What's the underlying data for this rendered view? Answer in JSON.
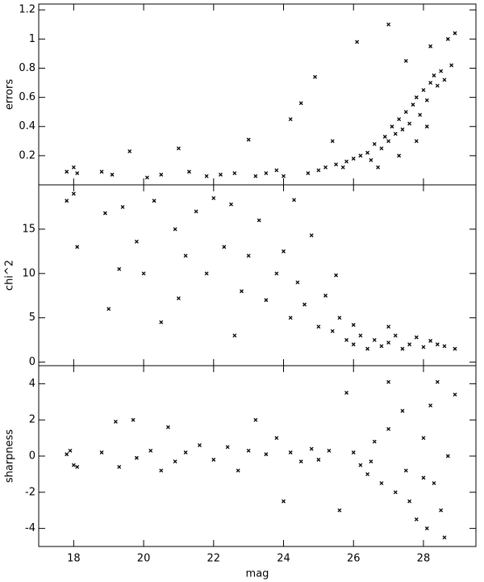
{
  "chart_data": [
    {
      "type": "scatter",
      "y_label": "errors",
      "color": "#000000",
      "xlim": [
        17,
        29.5
      ],
      "ylim": [
        0,
        1.24
      ],
      "yticks": [
        0.2,
        0.4,
        0.6,
        0.8,
        1.0,
        1.2
      ],
      "x": [
        17.8,
        18.0,
        18.1,
        18.8,
        19.1,
        19.6,
        20.1,
        20.5,
        21.0,
        21.3,
        21.8,
        22.2,
        22.6,
        23.0,
        23.2,
        23.5,
        23.8,
        24.0,
        24.2,
        24.5,
        24.7,
        24.9,
        25.0,
        25.2,
        25.4,
        25.5,
        25.7,
        25.8,
        26.0,
        26.1,
        26.2,
        26.4,
        26.5,
        26.6,
        26.8,
        26.9,
        27.0,
        27.0,
        27.1,
        27.2,
        27.3,
        27.4,
        27.5,
        27.6,
        27.7,
        27.8,
        27.9,
        28.0,
        28.1,
        28.2,
        28.3,
        28.4,
        28.5,
        28.6,
        28.2,
        28.7,
        28.9,
        28.8,
        27.5,
        27.8,
        28.1,
        26.7,
        27.3
      ],
      "values": [
        0.09,
        0.12,
        0.08,
        0.09,
        0.07,
        0.23,
        0.05,
        0.07,
        0.25,
        0.09,
        0.06,
        0.07,
        0.08,
        0.31,
        0.06,
        0.08,
        0.1,
        0.06,
        0.45,
        0.56,
        0.08,
        0.74,
        0.1,
        0.12,
        0.3,
        0.14,
        0.12,
        0.16,
        0.18,
        0.98,
        0.2,
        0.22,
        0.17,
        0.28,
        0.25,
        0.33,
        1.1,
        0.3,
        0.4,
        0.35,
        0.45,
        0.38,
        0.5,
        0.42,
        0.55,
        0.6,
        0.48,
        0.65,
        0.58,
        0.7,
        0.75,
        0.68,
        0.78,
        0.72,
        0.95,
        1.0,
        1.04,
        0.82,
        0.85,
        0.3,
        0.4,
        0.12,
        0.2
      ]
    },
    {
      "type": "scatter",
      "y_label": "chi^2",
      "color": "#000000",
      "xlim": [
        17,
        29.5
      ],
      "ylim": [
        -0.4,
        20
      ],
      "yticks": [
        0,
        5,
        10,
        15
      ],
      "x": [
        17.8,
        18.0,
        18.1,
        18.9,
        19.0,
        19.3,
        19.4,
        19.8,
        20.0,
        20.3,
        20.5,
        20.9,
        21.2,
        21.5,
        21.8,
        22.0,
        22.3,
        22.6,
        22.8,
        23.0,
        23.3,
        23.5,
        23.8,
        24.0,
        24.2,
        24.4,
        24.6,
        24.8,
        25.0,
        25.2,
        25.4,
        25.6,
        25.8,
        26.0,
        26.2,
        26.4,
        26.6,
        26.8,
        27.0,
        27.2,
        27.4,
        27.6,
        27.8,
        28.0,
        28.2,
        28.4,
        28.6,
        28.9,
        26.0,
        27.0,
        25.5,
        24.3,
        22.5,
        21.0
      ],
      "values": [
        18.2,
        19.0,
        13.0,
        16.8,
        6.0,
        10.5,
        17.5,
        13.6,
        10.0,
        18.2,
        4.5,
        15.0,
        12.0,
        17.0,
        10.0,
        18.5,
        13.0,
        3.0,
        8.0,
        12.0,
        16.0,
        7.0,
        10.0,
        12.5,
        5.0,
        9.0,
        6.5,
        14.3,
        4.0,
        7.5,
        3.5,
        5.0,
        2.5,
        2.0,
        3.0,
        1.5,
        2.5,
        1.8,
        2.2,
        3.0,
        1.5,
        2.0,
        2.8,
        1.7,
        2.4,
        2.0,
        1.8,
        1.5,
        4.2,
        4.0,
        9.8,
        18.3,
        17.8,
        7.2
      ]
    },
    {
      "type": "scatter",
      "y_label": "sharpness",
      "x_label": "mag",
      "color": "#000000",
      "xlim": [
        17,
        29.5
      ],
      "ylim": [
        -5,
        5
      ],
      "yticks": [
        -4,
        -2,
        0,
        2,
        4
      ],
      "xticks": [
        18,
        20,
        22,
        24,
        26,
        28
      ],
      "x": [
        17.8,
        17.9,
        18.0,
        18.1,
        18.8,
        19.2,
        19.3,
        19.7,
        19.8,
        20.2,
        20.5,
        20.7,
        20.9,
        21.2,
        21.6,
        22.0,
        22.4,
        22.7,
        23.0,
        23.2,
        23.5,
        23.8,
        24.0,
        24.2,
        24.5,
        24.8,
        25.0,
        25.3,
        25.6,
        25.8,
        26.0,
        26.2,
        26.4,
        26.6,
        26.8,
        27.0,
        27.0,
        27.2,
        27.4,
        27.6,
        27.8,
        28.0,
        28.1,
        28.2,
        28.3,
        28.4,
        28.5,
        28.6,
        28.7,
        28.9,
        27.5,
        28.0,
        26.5
      ],
      "values": [
        0.1,
        0.3,
        -0.5,
        -0.6,
        0.2,
        1.9,
        -0.6,
        2.0,
        -0.1,
        0.3,
        -0.8,
        1.6,
        -0.3,
        0.2,
        0.6,
        -0.2,
        0.5,
        -0.8,
        0.3,
        2.0,
        0.1,
        1.0,
        -2.5,
        0.2,
        -0.3,
        0.4,
        -0.2,
        0.3,
        -3.0,
        3.5,
        0.2,
        -0.5,
        -1.0,
        0.8,
        -1.5,
        1.5,
        4.1,
        -2.0,
        2.5,
        -2.5,
        -3.5,
        1.0,
        -4.0,
        2.8,
        -1.5,
        4.1,
        -3.0,
        -4.5,
        0.0,
        3.4,
        -0.8,
        -1.2,
        -0.3
      ]
    }
  ]
}
